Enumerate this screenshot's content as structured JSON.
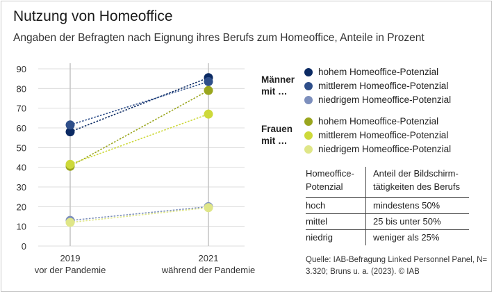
{
  "title": "Nutzung von Homeoffice",
  "subtitle": "Angaben der Befragten nach Eignung ihres Berufs zum Homeoffice, Anteile in Prozent",
  "chart_data": {
    "type": "line",
    "categories": [
      {
        "year": "2019",
        "label": "vor der Pandemie"
      },
      {
        "year": "2021",
        "label": "während der Pandemie"
      }
    ],
    "ylim": [
      0,
      90
    ],
    "yticks": [
      0,
      10,
      20,
      30,
      40,
      50,
      60,
      70,
      80,
      90
    ],
    "grid": true,
    "legend_position": "right",
    "groups": [
      {
        "label": "Männer mit …",
        "items": [
          "s0",
          "s1",
          "s2"
        ]
      },
      {
        "label": "Frauen mit …",
        "items": [
          "s3",
          "s4",
          "s5"
        ]
      }
    ],
    "series": [
      {
        "id": "s0",
        "name": "hohem Homeoffice-Potenzial",
        "color": "#0b2a63",
        "values": [
          58,
          85.5
        ]
      },
      {
        "id": "s1",
        "name": "mittlerem Homeoffice-Potenzial",
        "color": "#2f4f8a",
        "values": [
          61.5,
          83.5
        ]
      },
      {
        "id": "s2",
        "name": "niedrigem Homeoffice-Potenzial",
        "color": "#7d8fbd",
        "values": [
          13,
          20
        ]
      },
      {
        "id": "s3",
        "name": "hohem Homeoffice-Potenzial",
        "color": "#9aa61e",
        "values": [
          40.5,
          79
        ]
      },
      {
        "id": "s4",
        "name": "mittlerem Homeoffice-Potenzial",
        "color": "#cdd93a",
        "values": [
          41.5,
          67
        ]
      },
      {
        "id": "s5",
        "name": "niedrigem Homeoffice-Potenzial",
        "color": "#dfe688",
        "values": [
          12,
          19.5
        ]
      }
    ]
  },
  "table": {
    "headers": [
      "Homeoffice-\nPotenzial",
      "Anteil der Bildschirm-\ntätigkeiten des Berufs"
    ],
    "rows": [
      [
        "hoch",
        "mindestens 50%"
      ],
      [
        "mittel",
        "25 bis unter 50%"
      ],
      [
        "niedrig",
        "weniger als 25%"
      ]
    ]
  },
  "source": "Quelle:  IAB-Befragung Linked Personnel Panel, N= 3.320;  Bruns u. a. (2023). © IAB"
}
